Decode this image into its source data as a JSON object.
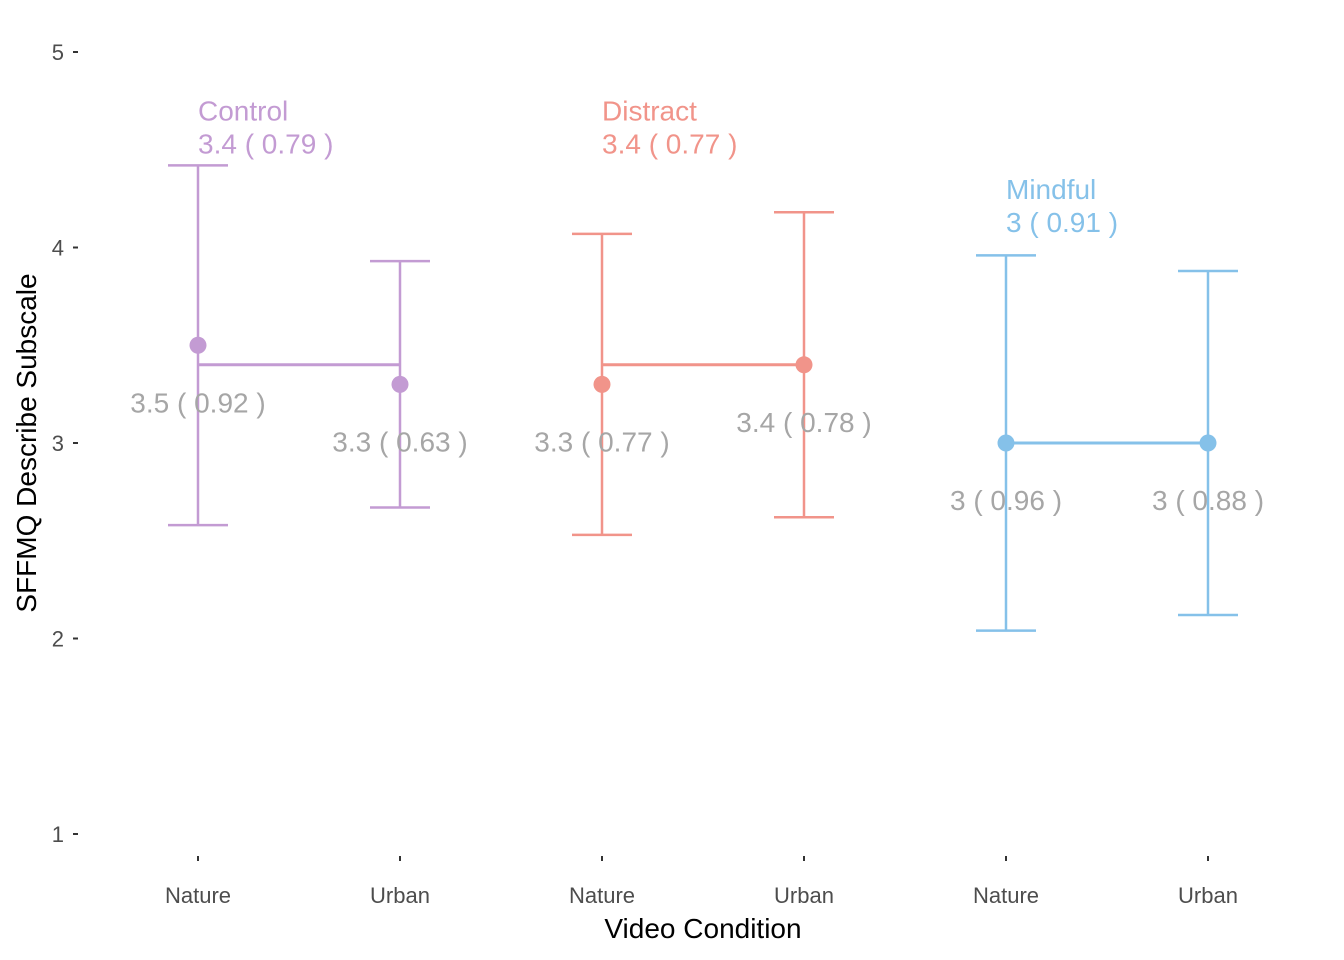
{
  "chart_data": {
    "type": "scatter",
    "title": "",
    "xlabel": "Video Condition",
    "ylabel": "SFFMQ Describe Subscale",
    "ylim": [
      1,
      5
    ],
    "yticks": [
      "1",
      "2",
      "3",
      "4",
      "5"
    ],
    "grid": false,
    "groups": [
      {
        "name": "Control",
        "color": "#c39bd3",
        "summary": {
          "mean": 3.4,
          "sd": 0.79,
          "label": "3.4 ( 0.79 )"
        },
        "points": [
          {
            "x": "Nature",
            "mean": 3.5,
            "sd": 0.92,
            "low": 2.58,
            "high": 4.42,
            "label": "3.5 ( 0.92 )"
          },
          {
            "x": "Urban",
            "mean": 3.3,
            "sd": 0.63,
            "low": 2.67,
            "high": 3.93,
            "label": "3.3 ( 0.63 )"
          }
        ]
      },
      {
        "name": "Distract",
        "color": "#f1948a",
        "summary": {
          "mean": 3.4,
          "sd": 0.77,
          "label": "3.4 ( 0.77 )"
        },
        "points": [
          {
            "x": "Nature",
            "mean": 3.3,
            "sd": 0.77,
            "low": 2.53,
            "high": 4.07,
            "label": "3.3 ( 0.77 )"
          },
          {
            "x": "Urban",
            "mean": 3.4,
            "sd": 0.78,
            "low": 2.62,
            "high": 4.18,
            "label": "3.4 ( 0.78 )"
          }
        ]
      },
      {
        "name": "Mindful",
        "color": "#85c1e9",
        "summary": {
          "mean": 3,
          "sd": 0.91,
          "label": "3 ( 0.91 )"
        },
        "points": [
          {
            "x": "Nature",
            "mean": 3.0,
            "sd": 0.96,
            "low": 2.04,
            "high": 3.96,
            "label": "3 ( 0.96 )"
          },
          {
            "x": "Urban",
            "mean": 3.0,
            "sd": 0.88,
            "low": 2.12,
            "high": 3.88,
            "label": "3 ( 0.88 )"
          }
        ]
      }
    ]
  }
}
